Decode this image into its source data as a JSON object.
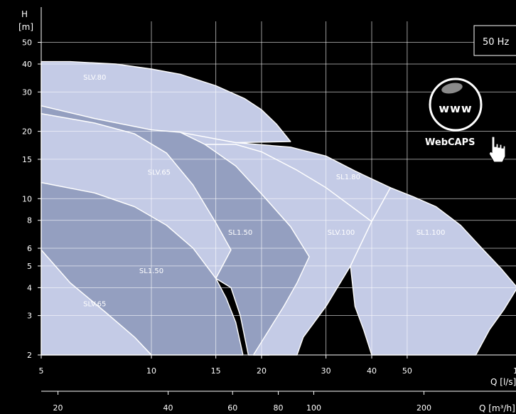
{
  "frequency_badge": "50 Hz",
  "webcaps": {
    "label": "WebCAPS",
    "globe_text": "www"
  },
  "chart_data": {
    "type": "area",
    "title": "",
    "xlabel": "Q [l/s]",
    "xlabel_secondary": "Q [m³/h]",
    "ylabel": "H [m]",
    "x_scale": "log",
    "y_scale": "log",
    "xlim": [
      5,
      100
    ],
    "ylim": [
      2,
      50
    ],
    "grid": true,
    "x_ticks": [
      5,
      10,
      15,
      20,
      30,
      40,
      50
    ],
    "x_edge_tick_text": "1",
    "x_secondary_ticks": [
      20,
      40,
      60,
      80,
      100,
      200
    ],
    "y_ticks": [
      2,
      3,
      4,
      5,
      6,
      8,
      10,
      15,
      20,
      30,
      40,
      50
    ],
    "colors": {
      "light": "#c4cbe6",
      "dark": "#949fc0",
      "line": "#ffffff",
      "background": "#000000"
    },
    "regions": [
      {
        "name": "SLV.80",
        "fill": "light",
        "label_at": [
          7,
          34
        ],
        "points": [
          [
            5,
            41
          ],
          [
            6,
            41
          ],
          [
            8,
            40
          ],
          [
            10,
            38
          ],
          [
            12,
            36
          ],
          [
            15,
            32
          ],
          [
            18,
            28
          ],
          [
            20,
            25
          ],
          [
            22,
            21.5
          ],
          [
            24,
            18
          ],
          [
            17,
            17.8
          ],
          [
            12,
            19.5
          ],
          [
            10,
            20.3
          ],
          [
            7,
            22.8
          ],
          [
            5,
            26
          ]
        ]
      },
      {
        "name": "SLV.65",
        "fill": "light",
        "label_at": [
          10.5,
          12.8
        ],
        "points": [
          [
            5,
            24
          ],
          [
            7,
            21.8
          ],
          [
            9,
            19.5
          ],
          [
            11,
            16
          ],
          [
            13,
            11.5
          ],
          [
            15,
            7.8
          ],
          [
            16.5,
            5.9
          ],
          [
            15,
            4.4
          ],
          [
            13,
            6
          ],
          [
            11,
            7.6
          ],
          [
            9,
            9.2
          ],
          [
            7,
            10.6
          ],
          [
            5,
            11.8
          ]
        ]
      },
      {
        "name": "SL1.50",
        "fill": "dark",
        "label_at": [
          17.5,
          6.9
        ],
        "points": [
          [
            5,
            26
          ],
          [
            7,
            22.8
          ],
          [
            10,
            20.3
          ],
          [
            12,
            19.8
          ],
          [
            14,
            17.5
          ],
          [
            17,
            14
          ],
          [
            20,
            10.5
          ],
          [
            24,
            7.5
          ],
          [
            27,
            5.5
          ],
          [
            26,
            4.4
          ],
          [
            24,
            3.3
          ],
          [
            22,
            2.4
          ],
          [
            21,
            2
          ],
          [
            18.4,
            2
          ],
          [
            17.5,
            3
          ],
          [
            16.5,
            4
          ],
          [
            15,
            4.4
          ],
          [
            16.5,
            5.9
          ],
          [
            15,
            7.8
          ],
          [
            13,
            11.5
          ],
          [
            11,
            16
          ],
          [
            9,
            19.5
          ],
          [
            7,
            21.8
          ],
          [
            5,
            24
          ]
        ]
      },
      {
        "name": "SLV.100",
        "fill": "light",
        "label_at": [
          33,
          6.9
        ],
        "points": [
          [
            14,
            17.5
          ],
          [
            17,
            17.5
          ],
          [
            20,
            16.2
          ],
          [
            25,
            13.4
          ],
          [
            30,
            11.2
          ],
          [
            35,
            9.3
          ],
          [
            40,
            7.9
          ],
          [
            35,
            5
          ],
          [
            30,
            3.3
          ],
          [
            26,
            2.4
          ],
          [
            25,
            2
          ],
          [
            19,
            2
          ],
          [
            21,
            2.6
          ],
          [
            23,
            3.3
          ],
          [
            25,
            4.2
          ],
          [
            27,
            5.5
          ],
          [
            24,
            7.5
          ],
          [
            20,
            10.5
          ],
          [
            17,
            14
          ]
        ]
      },
      {
        "name": "SL1.80",
        "fill": "light",
        "label_at": [
          34.5,
          12.2
        ],
        "points": [
          [
            12,
            19.8
          ],
          [
            17,
            17.8
          ],
          [
            24,
            17
          ],
          [
            30,
            15.5
          ],
          [
            36,
            13.3
          ],
          [
            45,
            11.2
          ],
          [
            40,
            7.9
          ],
          [
            35,
            9.3
          ],
          [
            30,
            11.2
          ],
          [
            25,
            13.4
          ],
          [
            20,
            16.2
          ],
          [
            17,
            17.5
          ],
          [
            14,
            17.5
          ]
        ]
      },
      {
        "name": "SL1.100",
        "fill": "light",
        "label_at": [
          58,
          6.9
        ],
        "points": [
          [
            45,
            11.2
          ],
          [
            52,
            10.2
          ],
          [
            60,
            9.2
          ],
          [
            70,
            7.6
          ],
          [
            80,
            6
          ],
          [
            90,
            4.9
          ],
          [
            100,
            4
          ],
          [
            92,
            3.2
          ],
          [
            84,
            2.6
          ],
          [
            77,
            2
          ],
          [
            40,
            2
          ],
          [
            38,
            2.6
          ],
          [
            36,
            3.3
          ],
          [
            35,
            5
          ],
          [
            40,
            7.9
          ]
        ]
      },
      {
        "name": "SL1.50",
        "fill": "dark",
        "label_at": [
          10,
          4.65
        ],
        "points": [
          [
            5,
            11.8
          ],
          [
            7,
            10.6
          ],
          [
            9,
            9.2
          ],
          [
            11,
            7.6
          ],
          [
            13,
            6
          ],
          [
            15,
            4.4
          ],
          [
            16,
            3.6
          ],
          [
            17,
            2.8
          ],
          [
            17.8,
            2
          ],
          [
            10,
            2
          ],
          [
            9,
            2.4
          ],
          [
            7.5,
            3.1
          ],
          [
            6,
            4.2
          ],
          [
            5,
            5.9
          ]
        ]
      },
      {
        "name": "SLV.65",
        "fill": "light",
        "label_at": [
          7,
          3.3
        ],
        "points": [
          [
            5,
            5.9
          ],
          [
            6,
            4.2
          ],
          [
            7.5,
            3.1
          ],
          [
            9,
            2.4
          ],
          [
            10,
            2
          ],
          [
            5,
            2
          ]
        ]
      }
    ]
  }
}
